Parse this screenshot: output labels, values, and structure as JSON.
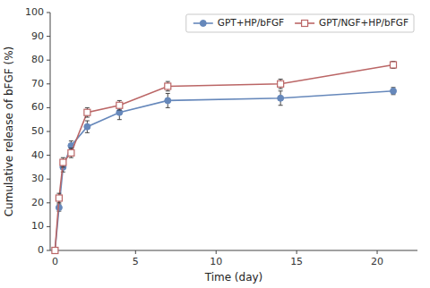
{
  "chart_data": {
    "type": "line",
    "x": [
      0,
      0.25,
      0.5,
      1,
      2,
      4,
      7,
      14,
      21
    ],
    "series": [
      {
        "name": "GPT+HP/bFGF",
        "color": "#6688BB",
        "marker": "circle",
        "values": [
          0,
          18,
          35,
          44,
          52,
          58,
          63,
          64,
          67
        ],
        "errors": [
          0,
          1.5,
          2,
          2,
          2.5,
          3,
          3,
          3,
          1.5
        ]
      },
      {
        "name": "GPT/NGF+HP/bFGF",
        "color": "#BB6666",
        "marker": "square",
        "values": [
          0,
          22,
          37,
          41,
          58,
          61,
          69,
          70,
          78
        ],
        "errors": [
          0,
          2,
          2,
          2,
          2,
          2,
          2,
          2,
          1.5
        ]
      }
    ],
    "xlabel": "Time (day)",
    "ylabel": "Cumulative release of bFGF (%)",
    "xlim": [
      -0.3,
      22.5
    ],
    "ylim": [
      0,
      100
    ],
    "xticks": [
      0,
      5,
      10,
      15,
      20
    ],
    "yticks": [
      0,
      10,
      20,
      30,
      40,
      50,
      60,
      70,
      80,
      90,
      100
    ],
    "legend": "upper right",
    "grid": false
  }
}
